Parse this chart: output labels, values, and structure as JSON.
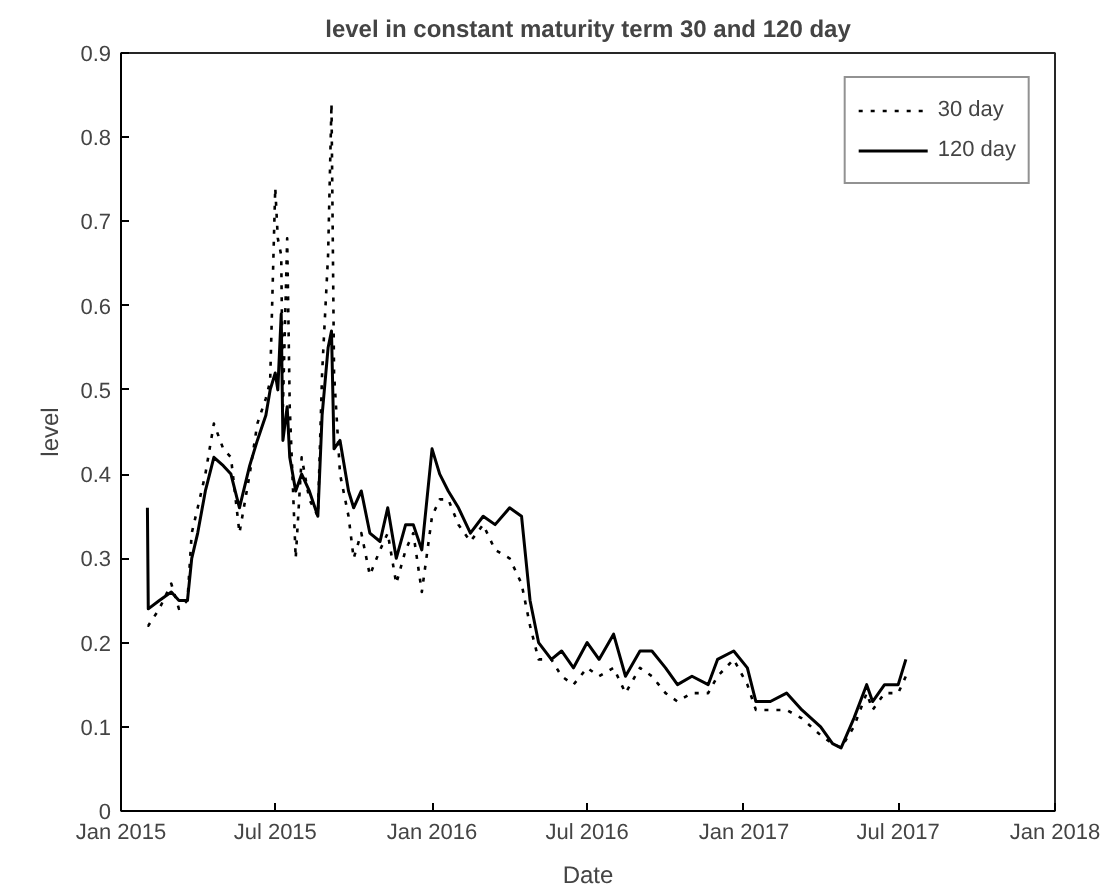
{
  "chart_data": {
    "type": "line",
    "title": "level in constant maturity term 30 and 120 day",
    "xlabel": "Date",
    "ylabel": "level",
    "x": [
      "2015-02-01",
      "2015-02-02",
      "2015-02-15",
      "2015-03-01",
      "2015-03-10",
      "2015-03-20",
      "2015-03-25",
      "2015-04-01",
      "2015-04-10",
      "2015-04-20",
      "2015-05-01",
      "2015-05-10",
      "2015-05-20",
      "2015-06-01",
      "2015-06-10",
      "2015-06-20",
      "2015-06-25",
      "2015-07-01",
      "2015-07-04",
      "2015-07-08",
      "2015-07-10",
      "2015-07-15",
      "2015-07-18",
      "2015-07-25",
      "2015-08-01",
      "2015-08-10",
      "2015-08-20",
      "2015-08-25",
      "2015-09-01",
      "2015-09-05",
      "2015-09-08",
      "2015-09-15",
      "2015-09-25",
      "2015-10-01",
      "2015-10-10",
      "2015-10-20",
      "2015-11-01",
      "2015-11-10",
      "2015-11-20",
      "2015-12-01",
      "2015-12-10",
      "2015-12-20",
      "2016-01-01",
      "2016-01-10",
      "2016-01-20",
      "2016-02-01",
      "2016-02-15",
      "2016-03-01",
      "2016-03-15",
      "2016-04-01",
      "2016-04-15",
      "2016-04-25",
      "2016-05-05",
      "2016-05-20",
      "2016-06-01",
      "2016-06-15",
      "2016-07-01",
      "2016-07-15",
      "2016-08-01",
      "2016-08-15",
      "2016-09-01",
      "2016-09-15",
      "2016-10-01",
      "2016-10-15",
      "2016-11-01",
      "2016-11-20",
      "2016-12-01",
      "2016-12-20",
      "2017-01-05",
      "2017-01-15",
      "2017-02-01",
      "2017-02-20",
      "2017-03-10",
      "2017-04-01",
      "2017-04-15",
      "2017-04-25",
      "2017-05-10",
      "2017-05-25",
      "2017-06-01",
      "2017-06-15",
      "2017-07-01",
      "2017-07-10"
    ],
    "series": [
      {
        "name": "30 day",
        "color": "#000000",
        "line_style": "dotted",
        "values": [
          0.22,
          0.22,
          0.24,
          0.27,
          0.24,
          0.25,
          0.33,
          0.36,
          0.4,
          0.46,
          0.43,
          0.42,
          0.33,
          0.4,
          0.46,
          0.49,
          0.51,
          0.74,
          0.68,
          0.66,
          0.48,
          0.68,
          0.48,
          0.3,
          0.42,
          0.37,
          0.35,
          0.52,
          0.66,
          0.84,
          0.52,
          0.4,
          0.35,
          0.3,
          0.33,
          0.28,
          0.31,
          0.33,
          0.27,
          0.31,
          0.33,
          0.26,
          0.35,
          0.37,
          0.37,
          0.34,
          0.32,
          0.34,
          0.31,
          0.3,
          0.27,
          0.22,
          0.18,
          0.18,
          0.16,
          0.15,
          0.17,
          0.16,
          0.17,
          0.14,
          0.17,
          0.16,
          0.14,
          0.13,
          0.14,
          0.14,
          0.16,
          0.18,
          0.15,
          0.12,
          0.12,
          0.12,
          0.11,
          0.09,
          0.08,
          0.075,
          0.1,
          0.14,
          0.12,
          0.14,
          0.14,
          0.16
        ]
      },
      {
        "name": "120 day",
        "color": "#000000",
        "line_style": "solid",
        "values": [
          0.36,
          0.24,
          0.25,
          0.26,
          0.25,
          0.25,
          0.3,
          0.33,
          0.38,
          0.42,
          0.41,
          0.4,
          0.36,
          0.41,
          0.44,
          0.47,
          0.5,
          0.52,
          0.5,
          0.59,
          0.44,
          0.48,
          0.42,
          0.38,
          0.4,
          0.38,
          0.35,
          0.47,
          0.55,
          0.57,
          0.43,
          0.44,
          0.38,
          0.36,
          0.38,
          0.33,
          0.32,
          0.36,
          0.3,
          0.34,
          0.34,
          0.31,
          0.43,
          0.4,
          0.38,
          0.36,
          0.33,
          0.35,
          0.34,
          0.36,
          0.35,
          0.25,
          0.2,
          0.18,
          0.19,
          0.17,
          0.2,
          0.18,
          0.21,
          0.16,
          0.19,
          0.19,
          0.17,
          0.15,
          0.16,
          0.15,
          0.18,
          0.19,
          0.17,
          0.13,
          0.13,
          0.14,
          0.12,
          0.1,
          0.08,
          0.075,
          0.11,
          0.15,
          0.13,
          0.15,
          0.15,
          0.18
        ]
      }
    ],
    "xlim": [
      "2015-01-01",
      "2018-01-01"
    ],
    "xticks": [
      {
        "value": "2015-01-01",
        "label": "Jan 2015"
      },
      {
        "value": "2015-07-01",
        "label": "Jul 2015"
      },
      {
        "value": "2016-01-01",
        "label": "Jan 2016"
      },
      {
        "value": "2016-07-01",
        "label": "Jul 2016"
      },
      {
        "value": "2017-01-01",
        "label": "Jan 2017"
      },
      {
        "value": "2017-07-01",
        "label": "Jul 2017"
      },
      {
        "value": "2018-01-01",
        "label": "Jan 2018"
      }
    ],
    "ylim": [
      0,
      0.9
    ],
    "yticks": [
      0,
      0.1,
      0.2,
      0.3,
      0.4,
      0.5,
      0.6,
      0.7,
      0.8,
      0.9
    ],
    "legend": "top right",
    "grid": false
  }
}
